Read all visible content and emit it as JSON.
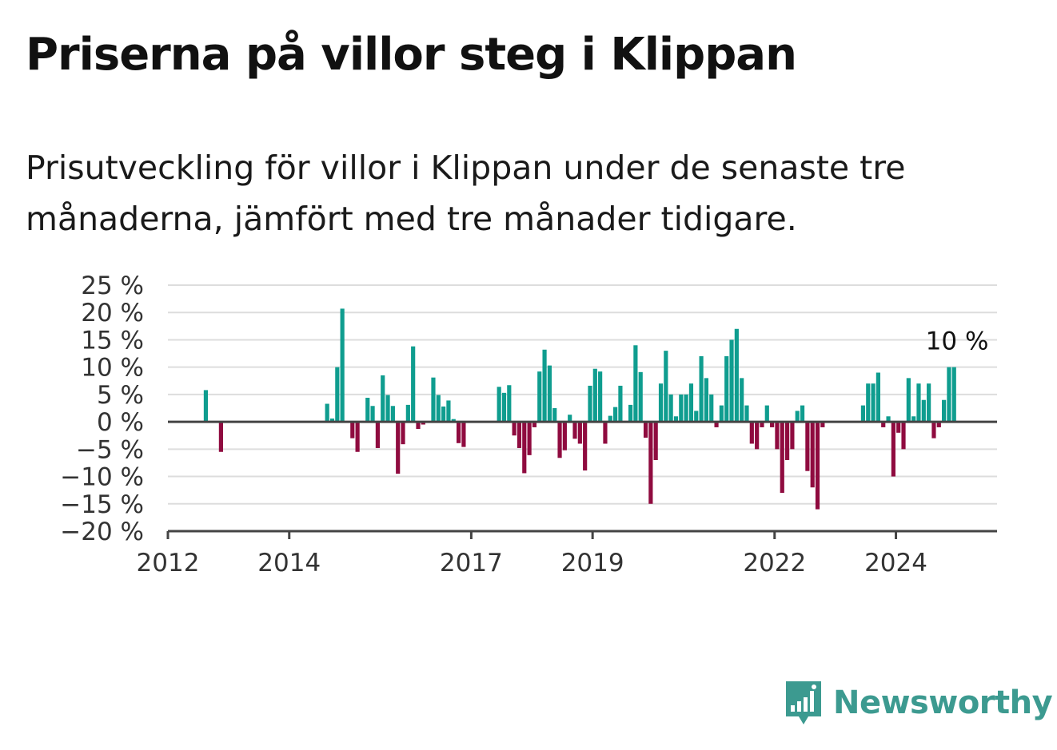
{
  "title": "Priserna på villor steg i Klippan",
  "subtitle": "Prisutveckling för villor i Klippan under de senaste tre månaderna, jämfört med tre månader tidigare.",
  "brand": {
    "name": "Newsworthy",
    "icon": "newsworthy-logo-icon"
  },
  "colors": {
    "positive": "#0f9d8f",
    "negative": "#8f0b3f",
    "grid": "#dddddd",
    "axis": "#444444",
    "brand": "#3c9a90"
  },
  "chart_data": {
    "type": "bar",
    "title": "",
    "xlabel": "",
    "ylabel": "",
    "ylim": [
      -20,
      25
    ],
    "yticks": [
      25,
      20,
      15,
      10,
      5,
      0,
      -5,
      -10,
      -15,
      -20
    ],
    "ytick_labels": [
      "25 %",
      "20 %",
      "15 %",
      "10 %",
      "5 %",
      "0 %",
      "−5 %",
      "−10 %",
      "−15 %",
      "−20 %"
    ],
    "xlim": [
      "2012-01",
      "2025-09"
    ],
    "xticks": [
      "2012",
      "2014",
      "2017",
      "2019",
      "2022",
      "2024"
    ],
    "grid": true,
    "last_value_label": "10 %",
    "series": [
      {
        "points": [
          {
            "x": "2012-08",
            "y": 5.8
          },
          {
            "x": "2012-11",
            "y": -5.5
          },
          {
            "x": "2014-08",
            "y": 3.3
          },
          {
            "x": "2014-09",
            "y": 0.6
          },
          {
            "x": "2014-10",
            "y": 10
          },
          {
            "x": "2014-11",
            "y": 20.7
          },
          {
            "x": "2015-01",
            "y": -3
          },
          {
            "x": "2015-02",
            "y": -5.5
          },
          {
            "x": "2015-04",
            "y": 4.4
          },
          {
            "x": "2015-05",
            "y": 2.9
          },
          {
            "x": "2015-06",
            "y": -4.8
          },
          {
            "x": "2015-07",
            "y": 8.5
          },
          {
            "x": "2015-08",
            "y": 4.9
          },
          {
            "x": "2015-09",
            "y": 2.9
          },
          {
            "x": "2015-10",
            "y": -9.5
          },
          {
            "x": "2015-11",
            "y": -4.1
          },
          {
            "x": "2015-12",
            "y": 3.1
          },
          {
            "x": "2016-01",
            "y": 13.8
          },
          {
            "x": "2016-02",
            "y": -1.3
          },
          {
            "x": "2016-03",
            "y": -0.5
          },
          {
            "x": "2016-05",
            "y": 8.1
          },
          {
            "x": "2016-06",
            "y": 4.9
          },
          {
            "x": "2016-07",
            "y": 2.8
          },
          {
            "x": "2016-08",
            "y": 3.9
          },
          {
            "x": "2016-09",
            "y": 0.5
          },
          {
            "x": "2016-10",
            "y": -3.9
          },
          {
            "x": "2016-11",
            "y": -4.6
          },
          {
            "x": "2017-06",
            "y": 6.4
          },
          {
            "x": "2017-07",
            "y": 5.3
          },
          {
            "x": "2017-08",
            "y": 6.7
          },
          {
            "x": "2017-09",
            "y": -2.5
          },
          {
            "x": "2017-10",
            "y": -4.8
          },
          {
            "x": "2017-11",
            "y": -9.4
          },
          {
            "x": "2017-12",
            "y": -6.1
          },
          {
            "x": "2018-01",
            "y": -1
          },
          {
            "x": "2018-02",
            "y": 9.2
          },
          {
            "x": "2018-03",
            "y": 13.2
          },
          {
            "x": "2018-04",
            "y": 10.3
          },
          {
            "x": "2018-05",
            "y": 2.5
          },
          {
            "x": "2018-06",
            "y": -6.6
          },
          {
            "x": "2018-07",
            "y": -5.2
          },
          {
            "x": "2018-08",
            "y": 1.3
          },
          {
            "x": "2018-09",
            "y": -3.1
          },
          {
            "x": "2018-10",
            "y": -4
          },
          {
            "x": "2018-11",
            "y": -8.9
          },
          {
            "x": "2018-12",
            "y": 6.6
          },
          {
            "x": "2019-01",
            "y": 9.7
          },
          {
            "x": "2019-02",
            "y": 9.2
          },
          {
            "x": "2019-03",
            "y": -4
          },
          {
            "x": "2019-04",
            "y": 1.1
          },
          {
            "x": "2019-05",
            "y": 2.7
          },
          {
            "x": "2019-06",
            "y": 6.6
          },
          {
            "x": "2019-08",
            "y": 3.1
          },
          {
            "x": "2019-09",
            "y": 14
          },
          {
            "x": "2019-10",
            "y": 9.1
          },
          {
            "x": "2019-11",
            "y": -2.9
          },
          {
            "x": "2019-12",
            "y": -15
          },
          {
            "x": "2020-01",
            "y": -7
          },
          {
            "x": "2020-02",
            "y": 7
          },
          {
            "x": "2020-03",
            "y": 13
          },
          {
            "x": "2020-04",
            "y": 5
          },
          {
            "x": "2020-05",
            "y": 1
          },
          {
            "x": "2020-06",
            "y": 5
          },
          {
            "x": "2020-07",
            "y": 5
          },
          {
            "x": "2020-08",
            "y": 7
          },
          {
            "x": "2020-09",
            "y": 2
          },
          {
            "x": "2020-10",
            "y": 12
          },
          {
            "x": "2020-11",
            "y": 8
          },
          {
            "x": "2020-12",
            "y": 5
          },
          {
            "x": "2021-01",
            "y": -1
          },
          {
            "x": "2021-02",
            "y": 3
          },
          {
            "x": "2021-03",
            "y": 12
          },
          {
            "x": "2021-04",
            "y": 15
          },
          {
            "x": "2021-05",
            "y": 17
          },
          {
            "x": "2021-06",
            "y": 8
          },
          {
            "x": "2021-07",
            "y": 3
          },
          {
            "x": "2021-08",
            "y": -4
          },
          {
            "x": "2021-09",
            "y": -5
          },
          {
            "x": "2021-10",
            "y": -1
          },
          {
            "x": "2021-11",
            "y": 3
          },
          {
            "x": "2021-12",
            "y": -1
          },
          {
            "x": "2022-01",
            "y": -5
          },
          {
            "x": "2022-02",
            "y": -13
          },
          {
            "x": "2022-03",
            "y": -7
          },
          {
            "x": "2022-04",
            "y": -5
          },
          {
            "x": "2022-05",
            "y": 2
          },
          {
            "x": "2022-06",
            "y": 3
          },
          {
            "x": "2022-07",
            "y": -9
          },
          {
            "x": "2022-08",
            "y": -12
          },
          {
            "x": "2022-09",
            "y": -16
          },
          {
            "x": "2022-10",
            "y": -1
          },
          {
            "x": "2023-06",
            "y": 3
          },
          {
            "x": "2023-07",
            "y": 7
          },
          {
            "x": "2023-08",
            "y": 7
          },
          {
            "x": "2023-09",
            "y": 9
          },
          {
            "x": "2023-10",
            "y": -1
          },
          {
            "x": "2023-11",
            "y": 1
          },
          {
            "x": "2023-12",
            "y": -10
          },
          {
            "x": "2024-01",
            "y": -2
          },
          {
            "x": "2024-02",
            "y": -5
          },
          {
            "x": "2024-03",
            "y": 8
          },
          {
            "x": "2024-04",
            "y": 1
          },
          {
            "x": "2024-05",
            "y": 7
          },
          {
            "x": "2024-06",
            "y": 4
          },
          {
            "x": "2024-07",
            "y": 7
          },
          {
            "x": "2024-08",
            "y": -3
          },
          {
            "x": "2024-09",
            "y": -1
          },
          {
            "x": "2024-10",
            "y": 4
          },
          {
            "x": "2024-11",
            "y": 10
          },
          {
            "x": "2024-12",
            "y": 10
          }
        ]
      }
    ]
  }
}
